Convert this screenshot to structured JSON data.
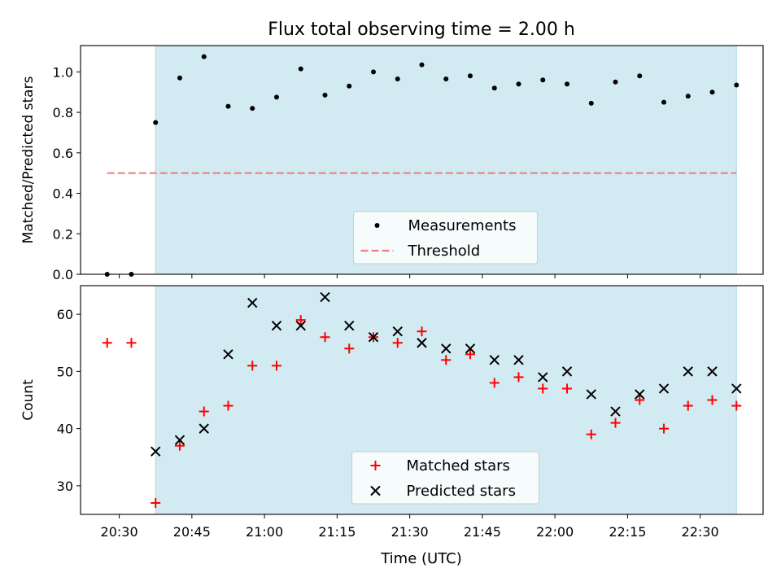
{
  "figure": {
    "title": "Flux total observing time = 2.00 h",
    "xlabel": "Time (UTC)"
  },
  "colors": {
    "shade": "#add8e6",
    "measurement": "#000000",
    "threshold": "#f08080",
    "matched": "#ff0000",
    "predicted": "#000000"
  },
  "chart_data": [
    {
      "type": "scatter",
      "ylabel": "Matched/Predicted stars",
      "xlim": [
        "20:22",
        "22:43"
      ],
      "ylim": [
        0,
        1.13
      ],
      "xticks": [
        "20:30",
        "20:45",
        "21:00",
        "21:15",
        "21:30",
        "21:45",
        "22:00",
        "22:15",
        "22:30"
      ],
      "yticks": [
        "0.0",
        "0.2",
        "0.4",
        "0.6",
        "0.8",
        "1.0"
      ],
      "shaded_range": [
        "20:37.5",
        "22:37.5"
      ],
      "legend": {
        "position": "lower-center",
        "entries": [
          "Measurements",
          "Threshold"
        ]
      },
      "series": [
        {
          "name": "Measurements",
          "marker": "dot",
          "x": [
            "20:27.5",
            "20:32.5",
            "20:37.5",
            "20:42.5",
            "20:47.5",
            "20:52.5",
            "20:57.5",
            "21:02.5",
            "21:07.5",
            "21:12.5",
            "21:17.5",
            "21:22.5",
            "21:27.5",
            "21:32.5",
            "21:37.5",
            "21:42.5",
            "21:47.5",
            "21:52.5",
            "21:57.5",
            "22:02.5",
            "22:07.5",
            "22:12.5",
            "22:17.5",
            "22:22.5",
            "22:27.5",
            "22:32.5",
            "22:37.5"
          ],
          "y": [
            0.0,
            0.0,
            0.75,
            0.97,
            1.075,
            0.83,
            0.82,
            0.875,
            1.015,
            0.885,
            0.93,
            1.0,
            0.965,
            1.035,
            0.965,
            0.98,
            0.92,
            0.94,
            0.96,
            0.94,
            0.845,
            0.95,
            0.98,
            0.85,
            0.88,
            0.9,
            0.935
          ]
        },
        {
          "name": "Threshold",
          "style": "dashed-line",
          "x": [
            "20:27.5",
            "22:37.5"
          ],
          "y": [
            0.5,
            0.5
          ]
        }
      ]
    },
    {
      "type": "scatter",
      "ylabel": "Count",
      "xlim": [
        "20:22",
        "22:43"
      ],
      "ylim": [
        25,
        65
      ],
      "xticks": [
        "20:30",
        "20:45",
        "21:00",
        "21:15",
        "21:30",
        "21:45",
        "22:00",
        "22:15",
        "22:30"
      ],
      "yticks": [
        "30",
        "40",
        "50",
        "60"
      ],
      "shaded_range": [
        "20:37.5",
        "22:37.5"
      ],
      "legend": {
        "position": "lower-center",
        "entries": [
          "Matched stars",
          "Predicted stars"
        ]
      },
      "series": [
        {
          "name": "Matched stars",
          "marker": "plus",
          "x": [
            "20:27.5",
            "20:32.5",
            "20:37.5",
            "20:42.5",
            "20:47.5",
            "20:52.5",
            "20:57.5",
            "21:02.5",
            "21:07.5",
            "21:12.5",
            "21:17.5",
            "21:22.5",
            "21:27.5",
            "21:32.5",
            "21:37.5",
            "21:42.5",
            "21:47.5",
            "21:52.5",
            "21:57.5",
            "22:02.5",
            "22:07.5",
            "22:12.5",
            "22:17.5",
            "22:22.5",
            "22:27.5",
            "22:32.5",
            "22:37.5"
          ],
          "y": [
            55,
            55,
            27,
            37,
            43,
            44,
            51,
            51,
            59,
            56,
            54,
            56,
            55,
            57,
            52,
            53,
            48,
            49,
            47,
            47,
            39,
            41,
            45,
            40,
            44,
            45,
            44
          ]
        },
        {
          "name": "Predicted stars",
          "marker": "x",
          "x": [
            "20:37.5",
            "20:42.5",
            "20:47.5",
            "20:52.5",
            "20:57.5",
            "21:02.5",
            "21:07.5",
            "21:12.5",
            "21:17.5",
            "21:22.5",
            "21:27.5",
            "21:32.5",
            "21:37.5",
            "21:42.5",
            "21:47.5",
            "21:52.5",
            "21:57.5",
            "22:02.5",
            "22:07.5",
            "22:12.5",
            "22:17.5",
            "22:22.5",
            "22:27.5",
            "22:32.5",
            "22:37.5"
          ],
          "y": [
            36,
            38,
            40,
            53,
            62,
            58,
            58,
            63,
            58,
            56,
            57,
            55,
            54,
            54,
            52,
            52,
            49,
            50,
            46,
            43,
            46,
            47,
            50,
            50,
            47
          ]
        }
      ]
    }
  ]
}
